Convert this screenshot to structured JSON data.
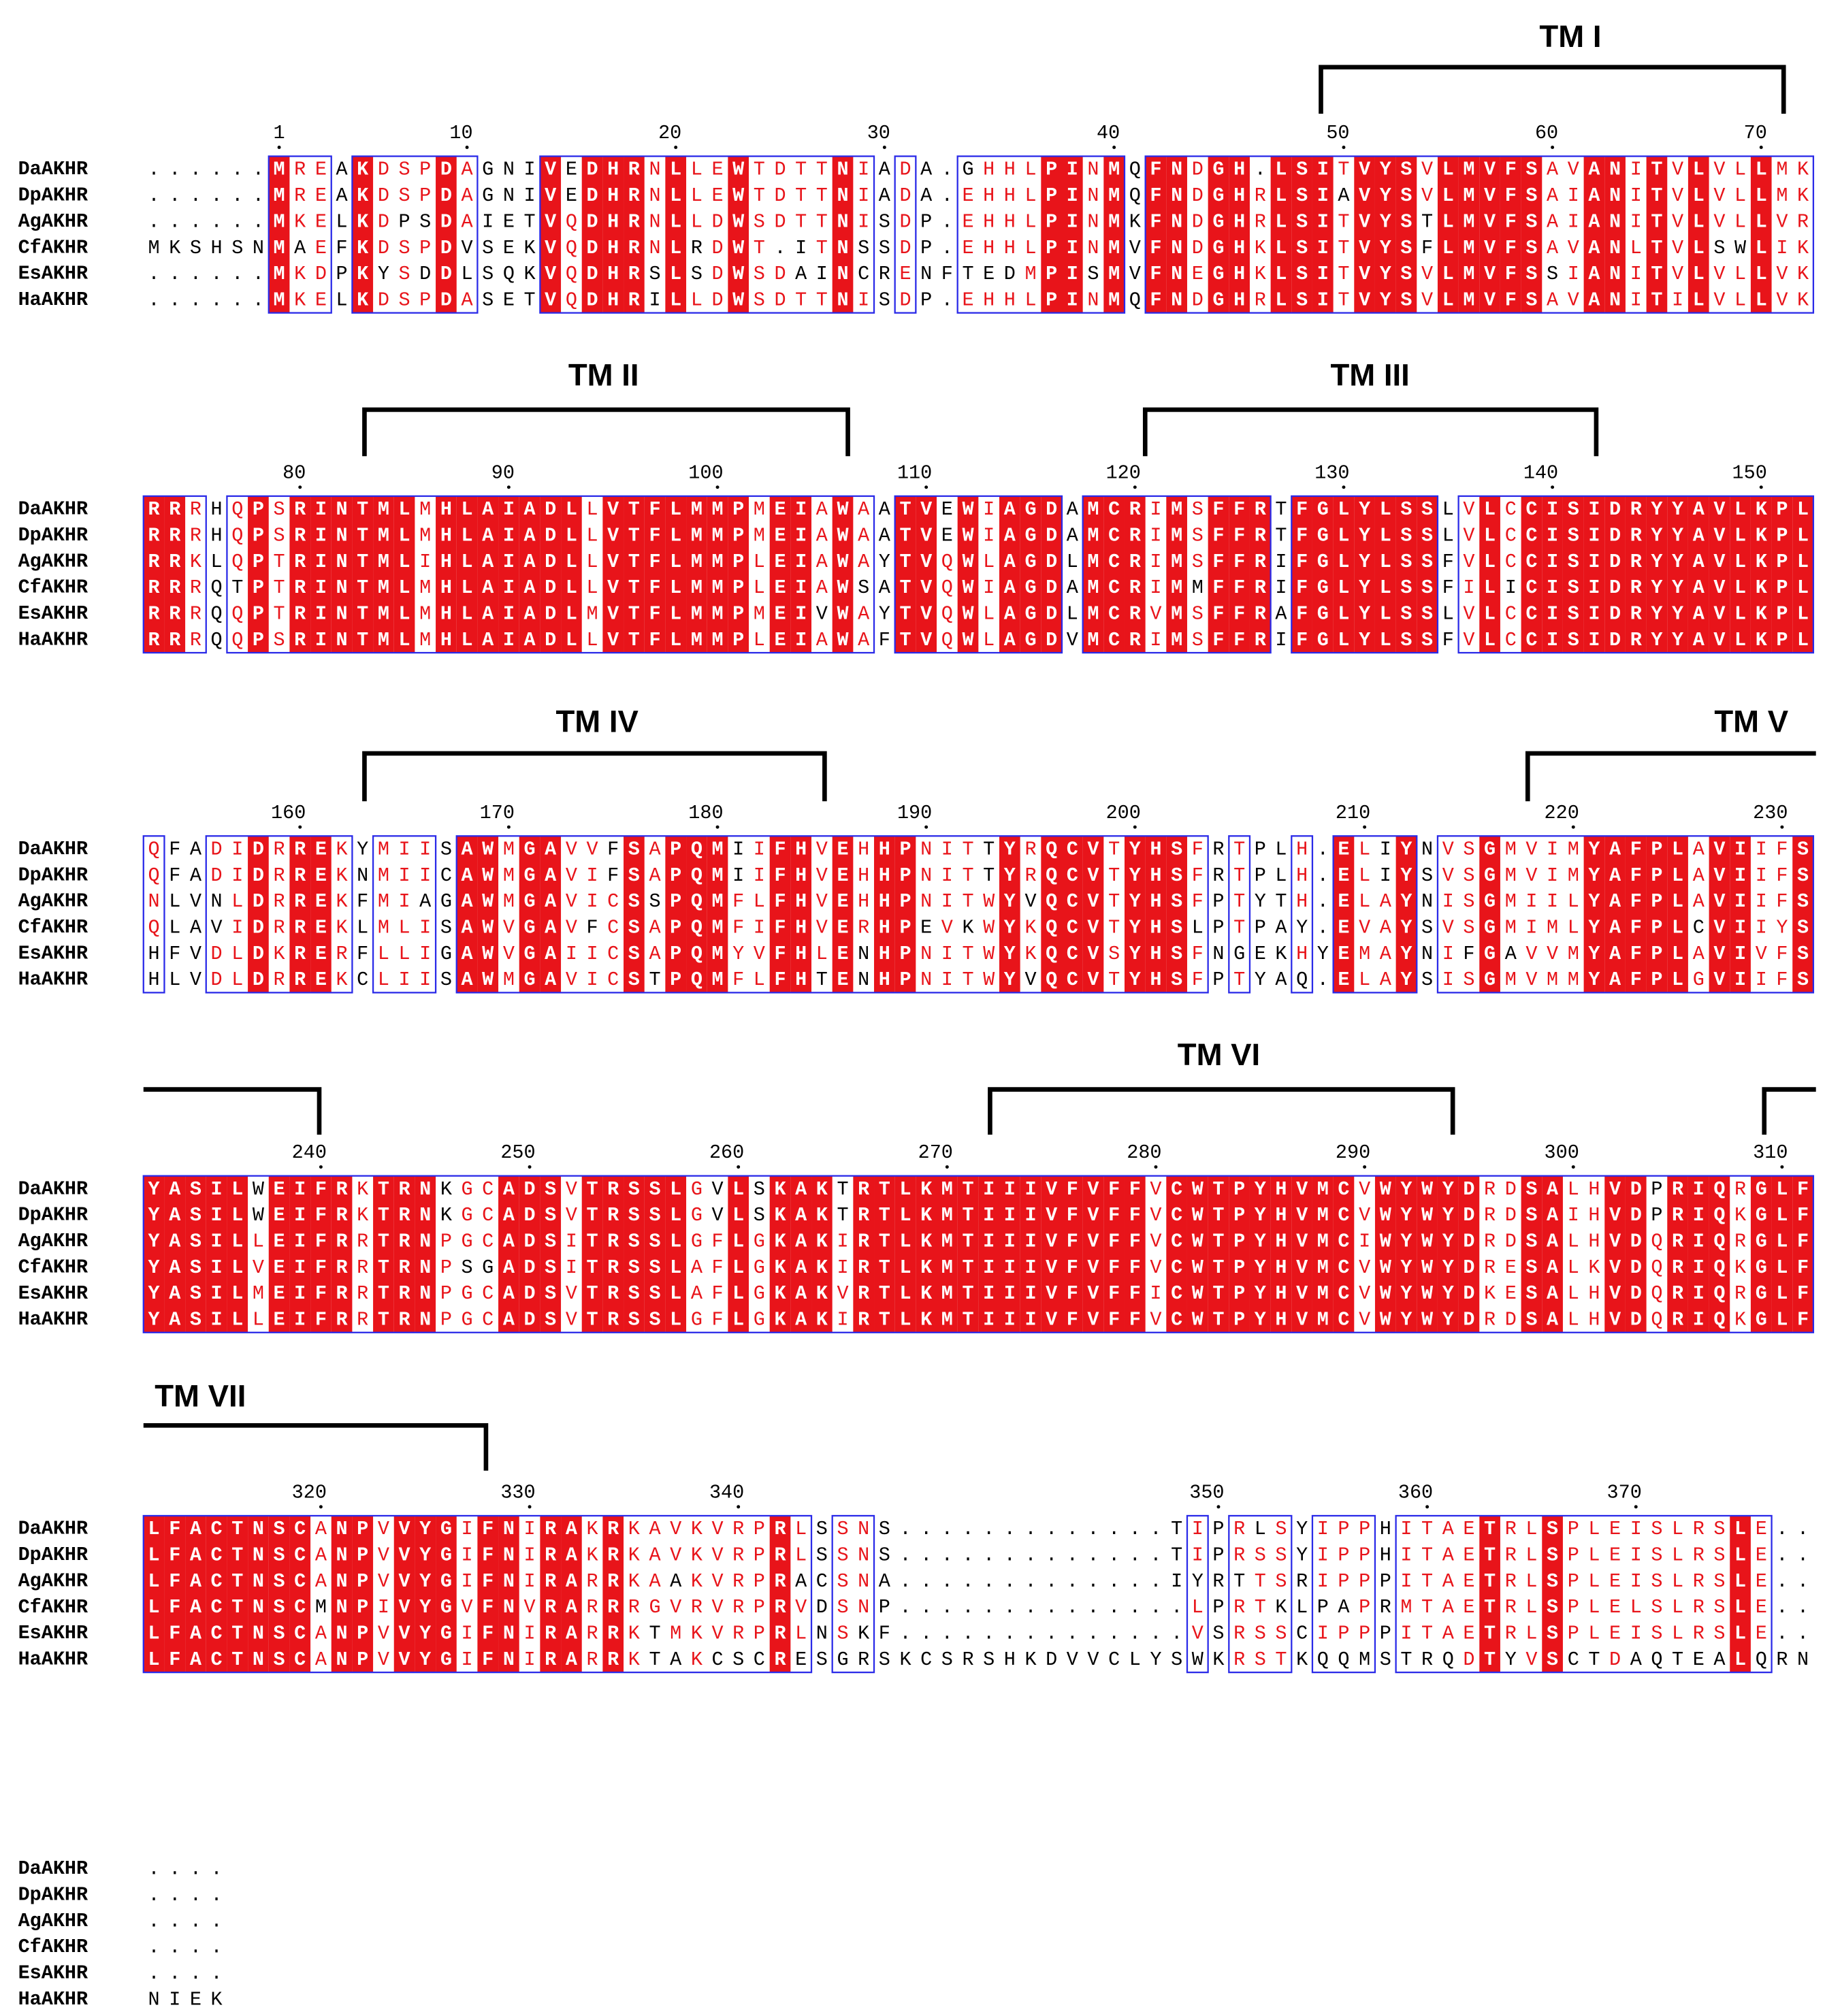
{
  "names": [
    "DaAKHR",
    "DpAKHR",
    "AgAKHR",
    "CfAKHR",
    "EsAKHR",
    "HaAKHR"
  ],
  "annotations": [
    {
      "label": "TM I"
    },
    {
      "label": "TM II"
    },
    {
      "label": "TM III"
    },
    {
      "label": "TM IV"
    },
    {
      "label": "TM V"
    },
    {
      "label": "TM VI"
    },
    {
      "label": "TM VII"
    }
  ],
  "blocks": [
    {
      "numbers": [
        1,
        10,
        20,
        30,
        40,
        50,
        60,
        70
      ],
      "rows": [
        "......MREAKDSPDAGNIVEDHRNLLEWTDTTNIADA.GHHLPINMQFNDGH.LSITVYSVLMVFSAVANITVLVLLMK",
        "......MREAKDSPDAGNIVEDHRNLLEWTDTTNIADA.EHHLPINMQFNDGHRLSIAVYSVLMVFSAIANITVLVLLMK",
        "......MKELKDPSDAIETVQDHRNLLDWSDTTNISDP.EHHLPINMKFNDGHRLSITVYSTLMVFSAIANITVLVLLVR",
        "MKSHSNMAEFKDSPDVSEKVQDHRNLRDWT.ITNSSDP.EHHLPINMVFNDGHKLSITVYSFLMVFSAVANLTVLSWLIK",
        "......MKDPKYSDDLSQKVQDHRSLSDWSDAINCRENFTEDMPISMVFNEGHKLSITVYSVLMVFSSIANITVLVLLVK",
        "......MKELKDSPDASETVQDHRILLDWSDTTNISDP.EHHLPINMQFNDGHRLSITVYSVLMVFSAVANITILVLLVK"
      ]
    },
    {
      "numbers": [
        80,
        90,
        100,
        110,
        120,
        130,
        140,
        150
      ],
      "rows": [
        "RRRHQPSRINTMLMHLAIADLLVTFLMMPMEIAWAATVEWIAGDAMCRIMSFFRTFGLYLSSLVLCCISIDRYYAVLKPL",
        "RRRHQPSRINTMLMHLAIADLLVTFLMMPMEIAWAATVEWIAGDAMCRIMSFFRTFGLYLSSLVLCCISIDRYYAVLKPL",
        "RRKLQPTRINTMLIHLAIADLLVTFLMMPLEIAWAYTVQWLAGDLMCRIMSFFRIFGLYLSSFVLCCISIDRYYAVLKPL",
        "RRRQTPTRINTMLMHLAIADLLVTFLMMPLEIAWSATVQWIAGDAMCRIMMFFRIFGLYLSSFILICISIDRYYAVLKPL",
        "RRRQQPTRINTMLMHLAIADLMVTFLMMPMEIVWAYTVQWLAGDLMCRVMSFFRAFGLYLSSLVLCCISIDRYYAVLKPL",
        "RRRQQPSRINTMLMHLAIADLLVTFLMMPLEIAWAFTVQWLAGDVMCRIMSFFRIFGLYLSSFVLCCISIDRYYAVLKPL"
      ]
    },
    {
      "numbers": [
        160,
        170,
        180,
        190,
        200,
        210,
        220,
        230
      ],
      "rows": [
        "QFADIDRREKYMIISAWMGAVVFSAPQMIIFHVEHHPNITTYRQCVTYHSFRTPLH.ELIYNVSGMVIMYAFPLAVIIFS",
        "QFADIDRREKNMIICAWMGAVIFSAPQMIIFHVEHHPNITTYRQCVTYHSFRTPLH.ELIYSVSGMVIMYAFPLAVIIFS",
        "NLVNLDRREKFMIAGAWMGAVICSSPQMFLFHVEHHPNITWYVQCVTYHSFPTYTH.ELAYNISGMIILYAFPLAVIIFS",
        "QLAVIDRREKLMLISAWVGAVFCSAPQMFIFHVERHPEVKWYKQCVTYHSLPTPAY.EVAYSVSGMIMLYAFPLCVIIYS",
        "HFVDLDKRERFLLIGAWVGAIICSAPQMYVFHLENHPNITWYKQCVSYHSFNGEKHYEMAYNIFGAVVMYAFPLAVIVFS",
        "HLVDLDRREKCLIISAWMGAVICSTPQMFLFHTENHPNITWYVQCVTYHSFPTYAQ.ELAYSISGMVMMYAFPLGVIIFS"
      ]
    },
    {
      "numbers": [
        240,
        250,
        260,
        270,
        280,
        290,
        300,
        310
      ],
      "rows": [
        "YASILWEIFRKTRNKGCADSVTRSSLGVLSKAKTRTLKMTIIIVFVFFVCWTPYHVMCVWYWYDRDSALHVDPRIQRGLF",
        "YASILWEIFRKTRNKGCADSVTRSSLGVLSKAKTRTLKMTIIIVFVFFVCWTPYHVMCVWYWYDRDSAIHVDPRIQKGLF",
        "YASILLEIFRRTRNPGCADSITRSSLGFLGKAKIRTLKMTIIIVFVFFVCWTPYHVMCIWYWYDRDSALHVDQRIQRGLF",
        "YASILVEIFRRTRNPSGADSITRSSLAFLGKAKIRTLKMTIIIVFVFFVCWTPYHVMCVWYWYDRESALKVDQRIQKGLF",
        "YASILMEIFRRTRNPGCADSVTRSSLAFLGKAKVRTLKMTIIIVFVFFICWTPYHVMCVWYWYDKESALHVDQRIQRGLF",
        "YASILLEIFRRTRNPGCADSVTRSSLGFLGKAKIRTLKMTIIIVFVFFVCWTPYHVMCVWYWYDRDSALHVDQRIQKGLF"
      ]
    },
    {
      "numbers": [
        320,
        330,
        340,
        350,
        360,
        370
      ],
      "rows": [
        "LFACTNSCANPVVYGIFNIRAKRKAVKVRPRLSSNS.............TIPRLSYIPPHITAETRLSPLEISLRSLE..",
        "LFACTNSCANPVVYGIFNIRAKRKAVKVRPRLSSNS.............TIPRSSYIPPHITAETRLSPLEISLRSLE..",
        "LFACTNSCANPVVYGIFNIRARRKAAKVRPRACSNA.............IYRTTSRIPPPITAETRLSPLEISLRSLE..",
        "LFACTNSCMNPIVYGVFNVRARRRGVRVRPRVDSNP..............LPRTKLPAPRMTAETRLSPLELSLRSLE..",
        "LFACTNSCANPVVYGIFNIRARRKTMKVRPRLNSKF..............VSRSSCIPPPITAETRLSPLEISLRSLE..",
        "LFACTNSCANPVVYGIFNIRARRKTAKCSCRESGRSKCSRSHKDVVCLYSWKRSTKQQMSTRQDTYVSCTDAQTEALQRN"
      ]
    },
    {
      "numbers": [],
      "rows": [
        "....",
        "....",
        "....",
        "....",
        "....",
        "NIEK"
      ]
    }
  ]
}
